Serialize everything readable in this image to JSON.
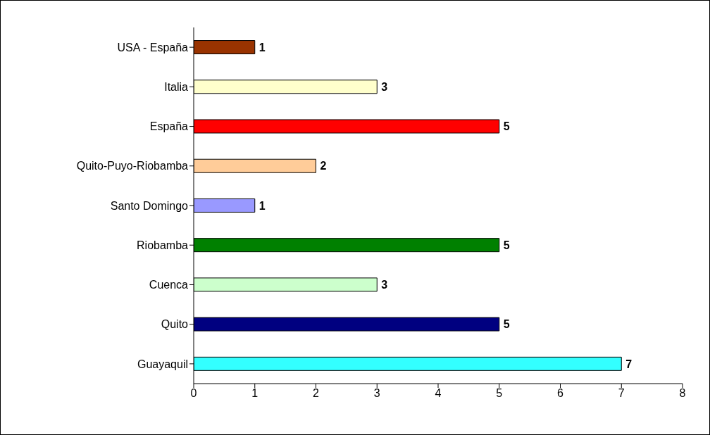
{
  "chart_data": {
    "type": "bar",
    "orientation": "horizontal",
    "categories": [
      "USA - España",
      "Italia",
      "España",
      "Quito-Puyo-Riobamba",
      "Santo Domingo",
      "Riobamba",
      "Cuenca",
      "Quito",
      "Guayaquil"
    ],
    "values": [
      1,
      3,
      5,
      2,
      1,
      5,
      3,
      5,
      7
    ],
    "colors": [
      "#993300",
      "#ffffcc",
      "#ff0000",
      "#ffcc99",
      "#9999ff",
      "#008000",
      "#ccffcc",
      "#000080",
      "#33ffff"
    ],
    "xlim": [
      0,
      8
    ],
    "xticks": [
      0,
      1,
      2,
      3,
      4,
      5,
      6,
      7,
      8
    ],
    "grid": false,
    "data_labels": true
  }
}
